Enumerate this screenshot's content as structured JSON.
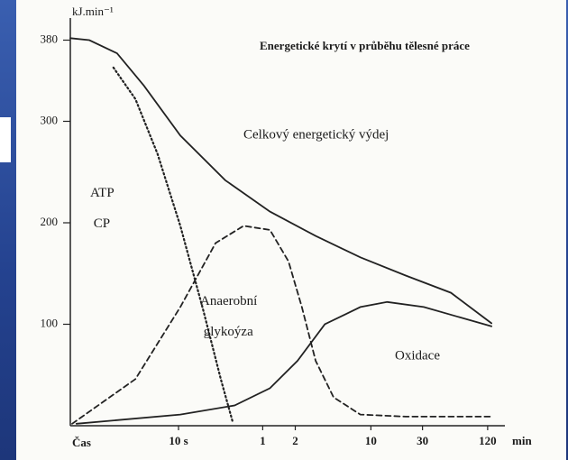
{
  "chart_data": {
    "type": "line",
    "title": "Energetické krytí v průběhu tělesné práce",
    "ylabel": "kJ.min⁻¹",
    "xlabel_left": "Čas",
    "xlabel_right": "min",
    "xscale": "log",
    "xlim": [
      1,
      8000
    ],
    "ylim": [
      0,
      400
    ],
    "xticks": [
      {
        "value": 10,
        "label": "10 s"
      },
      {
        "value": 60,
        "label": "1"
      },
      {
        "value": 120,
        "label": "2"
      },
      {
        "value": 600,
        "label": "10"
      },
      {
        "value": 1800,
        "label": "30"
      },
      {
        "value": 7200,
        "label": "120"
      }
    ],
    "yticks": [
      100,
      200,
      300,
      380
    ],
    "grid": false,
    "series": [
      {
        "name": "Celkový energetický výdej",
        "color": "#222222",
        "style": "solid",
        "x": [
          1,
          1.5,
          2.7,
          4.8,
          10.4,
          27,
          70,
          185,
          480,
          1260,
          3300,
          7800
        ],
        "values": [
          382,
          380,
          367,
          335,
          286,
          242,
          211,
          187,
          166,
          148,
          131,
          101
        ]
      },
      {
        "name": "ATP CP",
        "color": "#222222",
        "style": "dotted",
        "x": [
          2.5,
          4,
          6.4,
          10.4,
          17,
          24.6,
          31.6
        ],
        "values": [
          353,
          322,
          268,
          197,
          113,
          46,
          4
        ]
      },
      {
        "name": "Anaerobní glykoýza",
        "color": "#222222",
        "style": "dashed",
        "x": [
          1.04,
          4,
          10.4,
          22,
          40,
          70,
          104,
          138,
          185,
          271,
          480,
          1260,
          7800
        ],
        "values": [
          2,
          46,
          117,
          180,
          197,
          193,
          162,
          117,
          64,
          28,
          11,
          9,
          9
        ]
      },
      {
        "name": "Oxidace",
        "color": "#222222",
        "style": "solid",
        "x": [
          1.14,
          10.4,
          33,
          70,
          126,
          225,
          480,
          850,
          1850,
          7800
        ],
        "values": [
          2,
          11,
          20,
          37,
          64,
          100,
          117,
          122,
          117,
          98
        ]
      }
    ]
  }
}
